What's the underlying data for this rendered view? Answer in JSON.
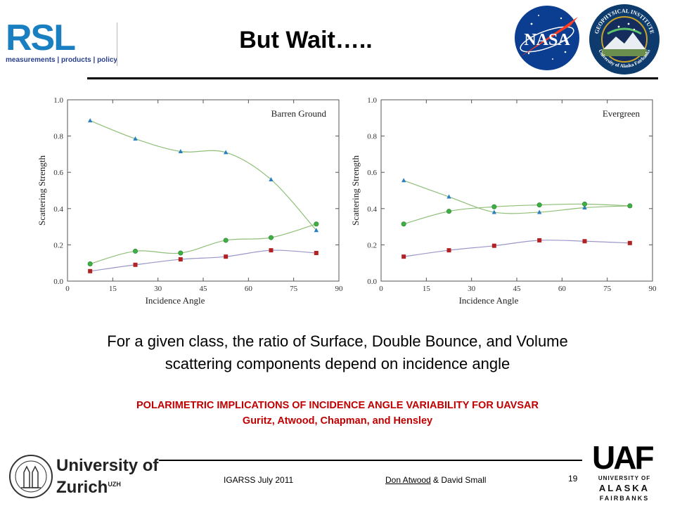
{
  "header": {
    "title": "But Wait…..",
    "rsl_letters": "RSL",
    "rsl_tagline": "measurements | products | policy",
    "nasa_text": "NASA",
    "gi_ring_top": "GEOPHYSICAL INSTITUTE",
    "gi_ring_bottom": "University of Alaska Fairbanks"
  },
  "colors": {
    "surface": "#2a7fc1",
    "double_bounce": "#b22222",
    "volume": "#3cb043",
    "title_red": "#c00000",
    "rsl_blue": "#1a7fc1"
  },
  "chart_data": [
    {
      "type": "line",
      "annotation": "Barren Ground",
      "xlabel": "Incidence Angle",
      "ylabel": "Scattering Strength",
      "xlim": [
        0,
        90
      ],
      "ylim": [
        0,
        1.0
      ],
      "xticks": [
        0,
        15,
        30,
        45,
        60,
        75,
        90
      ],
      "yticks": [
        0.0,
        0.2,
        0.4,
        0.6,
        0.8,
        1.0
      ],
      "grid": false,
      "series": [
        {
          "marker": "triangle",
          "color": "#2a7fc1",
          "x": [
            7.5,
            22.5,
            37.5,
            52.5,
            67.5,
            82.5
          ],
          "y": [
            0.885,
            0.785,
            0.715,
            0.71,
            0.56,
            0.28
          ]
        },
        {
          "marker": "circle",
          "color": "#3cb043",
          "x": [
            7.5,
            22.5,
            37.5,
            52.5,
            67.5,
            82.5
          ],
          "y": [
            0.095,
            0.165,
            0.155,
            0.225,
            0.24,
            0.315
          ]
        },
        {
          "marker": "square",
          "color": "#b22222",
          "x": [
            7.5,
            22.5,
            37.5,
            52.5,
            67.5,
            82.5
          ],
          "y": [
            0.055,
            0.09,
            0.12,
            0.135,
            0.17,
            0.155
          ]
        }
      ]
    },
    {
      "type": "line",
      "annotation": "Evergreen",
      "xlabel": "Incidence Angle",
      "ylabel": "Scattering Strength",
      "xlim": [
        0,
        90
      ],
      "ylim": [
        0,
        1.0
      ],
      "xticks": [
        0,
        15,
        30,
        45,
        60,
        75,
        90
      ],
      "yticks": [
        0.0,
        0.2,
        0.4,
        0.6,
        0.8,
        1.0
      ],
      "grid": false,
      "series": [
        {
          "marker": "triangle",
          "color": "#2a7fc1",
          "x": [
            7.5,
            22.5,
            37.5,
            52.5,
            67.5,
            82.5
          ],
          "y": [
            0.555,
            0.465,
            0.38,
            0.38,
            0.405,
            0.415
          ]
        },
        {
          "marker": "circle",
          "color": "#3cb043",
          "x": [
            7.5,
            22.5,
            37.5,
            52.5,
            67.5,
            82.5
          ],
          "y": [
            0.315,
            0.385,
            0.41,
            0.42,
            0.425,
            0.415
          ]
        },
        {
          "marker": "square",
          "color": "#b22222",
          "x": [
            7.5,
            22.5,
            37.5,
            52.5,
            67.5,
            82.5
          ],
          "y": [
            0.135,
            0.17,
            0.195,
            0.225,
            0.22,
            0.21
          ]
        }
      ]
    }
  ],
  "caption": {
    "line1": "For a given class, the ratio of Surface, Double Bounce, and Volume",
    "line2": "scattering components depend on incidence angle"
  },
  "paper": {
    "title": "POLARIMETRIC IMPLICATIONS OF INCIDENCE ANGLE VARIABILITY FOR UAVSAR",
    "authors": "Guritz, Atwood, Chapman, and Hensley"
  },
  "footer": {
    "conference": "IGARSS July 2011",
    "presenter": "Don Atwood",
    "presenter_rest": " & David Small",
    "page": "19",
    "uzh_line1": "University of",
    "uzh_line2": "Zurich",
    "uzh_super": "UZH",
    "uaf_mark": "UAF",
    "uaf_line1": "UNIVERSITY OF",
    "uaf_line2": "ALASKA",
    "uaf_line3": "FAIRBANKS"
  }
}
